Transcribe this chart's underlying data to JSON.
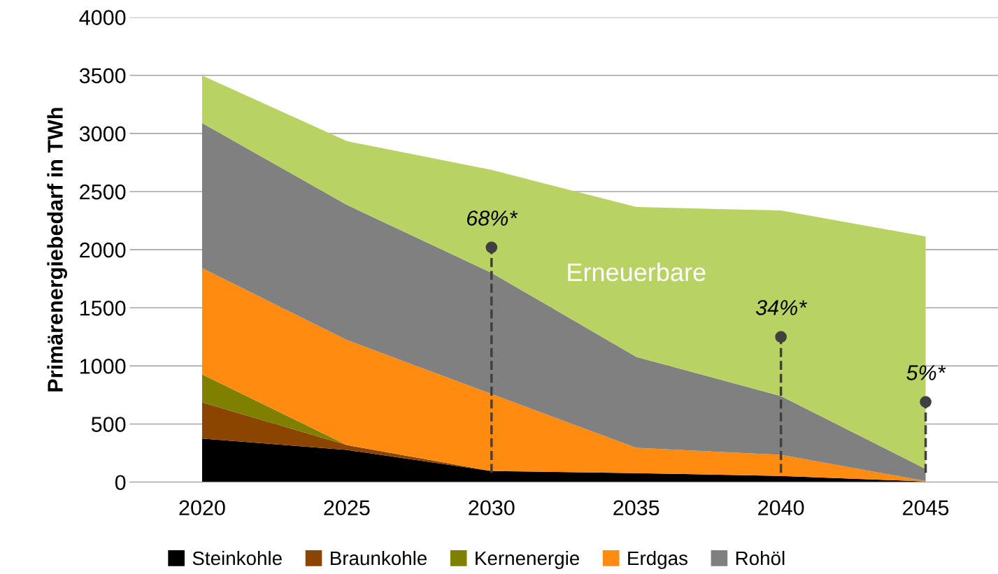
{
  "chart_data": {
    "type": "area",
    "stacked": true,
    "ylabel": "Primärenergiebedarf in TWh",
    "categories": [
      "2020",
      "2025",
      "2030",
      "2035",
      "2040",
      "2045"
    ],
    "series": [
      {
        "name": "Steinkohle",
        "color": "#000000",
        "values": [
          375,
          277,
          96,
          78,
          54,
          6
        ]
      },
      {
        "name": "Braunkohle",
        "color": "#8b4500",
        "values": [
          312,
          42,
          0,
          0,
          0,
          0
        ]
      },
      {
        "name": "Kernenergie",
        "color": "#7f7f00",
        "values": [
          240,
          0,
          0,
          0,
          0,
          0
        ]
      },
      {
        "name": "Erdgas",
        "color": "#ff8c11",
        "values": [
          915,
          904,
          663,
          217,
          181,
          4
        ]
      },
      {
        "name": "Rohöl",
        "color": "#808080",
        "values": [
          1247,
          1163,
          1042,
          783,
          506,
          104
        ]
      },
      {
        "name": "Erneuerbare",
        "color": "#b9d264",
        "values": [
          410,
          548,
          886,
          1289,
          1596,
          2000
        ]
      }
    ],
    "ylim": [
      0,
      4000
    ],
    "yticks": [
      0,
      500,
      1000,
      1500,
      2000,
      2500,
      3000,
      3500,
      4000
    ],
    "grid": "y",
    "legend": "bottom",
    "annotations": [
      {
        "text": "68%*",
        "x": "2030",
        "y": 2020
      },
      {
        "text": "34%*",
        "x": "2040",
        "y": 1250
      },
      {
        "text": "5%*",
        "x": "2045",
        "y": 690
      }
    ]
  }
}
